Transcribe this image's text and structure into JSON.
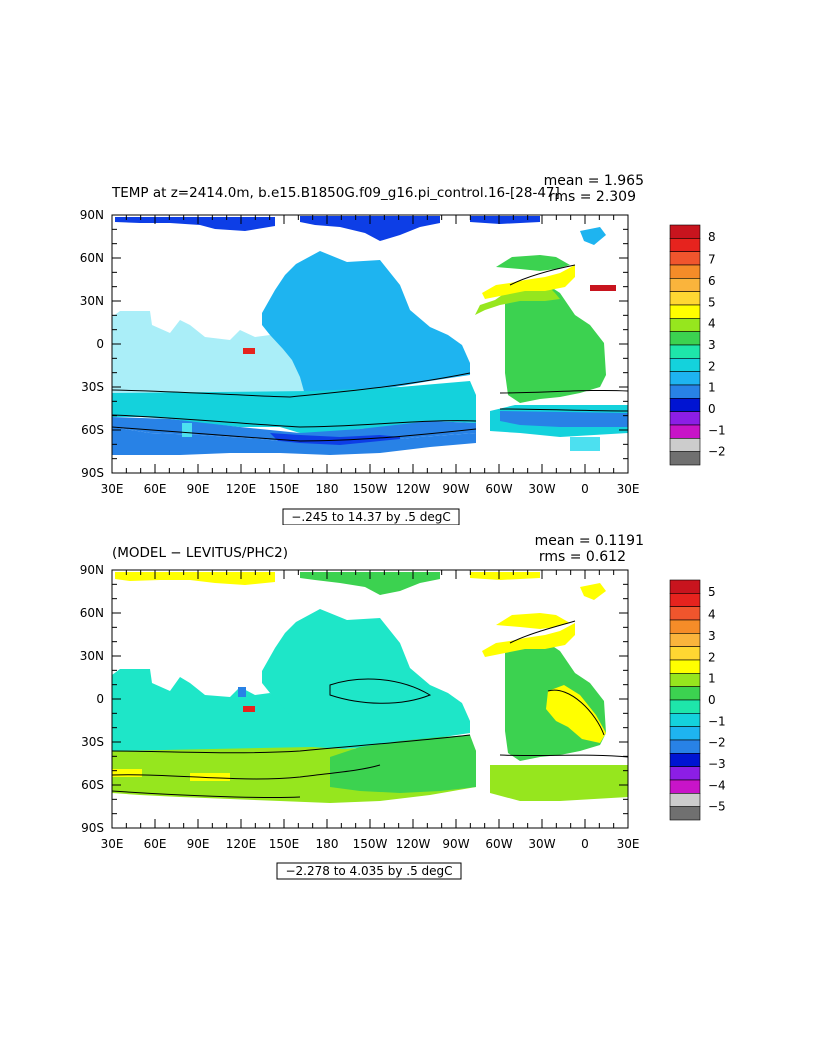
{
  "chart_data": [
    {
      "type": "heatmap",
      "title": "TEMP at z=2414.0m, b.e15.B1850G.f09_g16.pi_control.16-[28-47]",
      "stats": {
        "mean": "mean = 1.965",
        "rms": "rms = 2.309"
      },
      "range_note": "−.245 to 14.37 by .5 degC",
      "xticks": [
        "30E",
        "60E",
        "90E",
        "120E",
        "150E",
        "180",
        "150W",
        "120W",
        "90W",
        "60W",
        "30W",
        "0",
        "30E"
      ],
      "yticks": [
        "90N",
        "60N",
        "30N",
        "0",
        "30S",
        "60S",
        "90S"
      ],
      "ylim": [
        -90,
        90
      ],
      "colorbar": {
        "labels": [
          "8",
          "7",
          "6",
          "5",
          "4",
          "3",
          "2",
          "1",
          "0",
          "−1",
          "−2"
        ],
        "colors": [
          "#c8141e",
          "#e6231e",
          "#f0552d",
          "#f58c28",
          "#fab43c",
          "#ffd732",
          "#ffff00",
          "#96e61e",
          "#3cd250",
          "#1ee6aa",
          "#14d2dc",
          "#1eb4f0",
          "#2882e6",
          "#0014d2",
          "#8c1ee6",
          "#c814c8",
          "#cccccc",
          "#707070"
        ]
      },
      "regions": {
        "pacific": "#1eb4f0",
        "indian": "#aaeef8",
        "southern_band": "#14d2dc",
        "southern_deep": "#2882e6",
        "arctic": "#0d3ee6",
        "atlantic_south": "#3cd250",
        "atlantic_north": "#96e61e",
        "north_atlantic_warm": "#ffff00",
        "med": "#c8141e",
        "red_sea": "#e6231e",
        "coastal_cyan": "#4ce0f0"
      }
    },
    {
      "type": "heatmap",
      "title": "(MODEL − LEVITUS/PHC2)",
      "stats": {
        "mean": "mean = 0.1191",
        "rms": "rms = 0.612"
      },
      "range_note": "−2.278 to 4.035 by .5 degC",
      "xticks": [
        "30E",
        "60E",
        "90E",
        "120E",
        "150E",
        "180",
        "150W",
        "120W",
        "90W",
        "60W",
        "30W",
        "0",
        "30E"
      ],
      "yticks": [
        "90N",
        "60N",
        "30N",
        "0",
        "30S",
        "60S",
        "90S"
      ],
      "ylim": [
        -90,
        90
      ],
      "colorbar": {
        "labels": [
          "5",
          "4",
          "3",
          "2",
          "1",
          "0",
          "−1",
          "−2",
          "−3",
          "−4",
          "−5"
        ],
        "colors": [
          "#c8141e",
          "#e6231e",
          "#f0552d",
          "#f58c28",
          "#fab43c",
          "#ffd732",
          "#ffff00",
          "#96e61e",
          "#3cd250",
          "#1ee6aa",
          "#14d2dc",
          "#1eb4f0",
          "#2882e6",
          "#0014d2",
          "#8c1ee6",
          "#c814c8",
          "#cccccc",
          "#707070"
        ]
      },
      "regions": {
        "pacific": "#1ee6c8",
        "indian": "#1ee6c8",
        "southern": "#96e61e",
        "southern_pos": "#3cd250",
        "arctic": "#ffff00",
        "arctic_atl": "#3cd250",
        "atlantic": "#3cd250",
        "atlantic_north": "#ffff00",
        "atlantic_south_warm": "#ffff00",
        "med": "#e6231e"
      }
    }
  ]
}
